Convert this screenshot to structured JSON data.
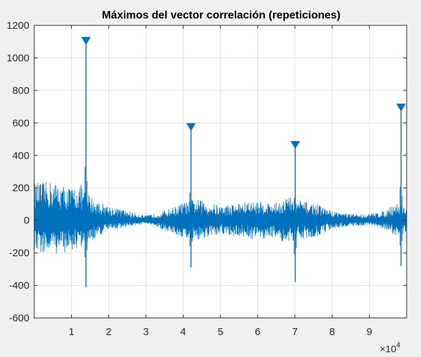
{
  "chart_data": {
    "type": "line",
    "title": "Máximos del vector correlación (repeticiones)",
    "xlabel": "",
    "ylabel": "",
    "xlim": [
      0,
      100000
    ],
    "ylim": [
      -600,
      1200
    ],
    "x_ticks": [
      10000,
      20000,
      30000,
      40000,
      50000,
      60000,
      70000,
      80000,
      90000
    ],
    "x_tick_labels": [
      "1",
      "2",
      "3",
      "4",
      "5",
      "6",
      "7",
      "8",
      "9"
    ],
    "x_exponent_label": "×10",
    "x_exponent_power": "4",
    "y_ticks": [
      -600,
      -400,
      -200,
      0,
      200,
      400,
      600,
      800,
      1000,
      1200
    ],
    "y_tick_labels": [
      "-600",
      "-400",
      "-200",
      "0",
      "200",
      "400",
      "600",
      "800",
      "1000",
      "1200"
    ],
    "grid": true,
    "series": [
      {
        "type": "line",
        "color": "#0072bd",
        "envelope": [
          {
            "x": 0,
            "hi": 230,
            "lo": -200
          },
          {
            "x": 5000,
            "hi": 240,
            "lo": -210
          },
          {
            "x": 10000,
            "hi": 200,
            "lo": -190
          },
          {
            "x": 12500,
            "hi": 220,
            "lo": -170
          },
          {
            "x": 16000,
            "hi": 130,
            "lo": -120
          },
          {
            "x": 20000,
            "hi": 90,
            "lo": -60
          },
          {
            "x": 25000,
            "hi": 60,
            "lo": -40
          },
          {
            "x": 30000,
            "hi": 30,
            "lo": -20
          },
          {
            "x": 35000,
            "hi": 60,
            "lo": -60
          },
          {
            "x": 40000,
            "hi": 110,
            "lo": -110
          },
          {
            "x": 44000,
            "hi": 130,
            "lo": -120
          },
          {
            "x": 50000,
            "hi": 90,
            "lo": -90
          },
          {
            "x": 55000,
            "hi": 110,
            "lo": -100
          },
          {
            "x": 60000,
            "hi": 120,
            "lo": -120
          },
          {
            "x": 65000,
            "hi": 110,
            "lo": -100
          },
          {
            "x": 68000,
            "hi": 150,
            "lo": -160
          },
          {
            "x": 72000,
            "hi": 120,
            "lo": -110
          },
          {
            "x": 76000,
            "hi": 100,
            "lo": -100
          },
          {
            "x": 80000,
            "hi": 60,
            "lo": -50
          },
          {
            "x": 85000,
            "hi": 40,
            "lo": -35
          },
          {
            "x": 90000,
            "hi": 40,
            "lo": -30
          },
          {
            "x": 94000,
            "hi": 60,
            "lo": -50
          },
          {
            "x": 97000,
            "hi": 110,
            "lo": -100
          },
          {
            "x": 100000,
            "hi": 90,
            "lo": -80
          }
        ],
        "spikes": [
          {
            "x": 13900,
            "hi": 1100,
            "lo": -410
          },
          {
            "x": 42100,
            "hi": 570,
            "lo": -290
          },
          {
            "x": 70100,
            "hi": 460,
            "lo": -380
          },
          {
            "x": 98500,
            "hi": 690,
            "lo": -280
          }
        ]
      },
      {
        "type": "scatter",
        "marker": "downward-triangle",
        "color": "#0072bd",
        "x": [
          13900,
          42100,
          70100,
          98500
        ],
        "y": [
          1105,
          575,
          465,
          695
        ]
      }
    ]
  }
}
